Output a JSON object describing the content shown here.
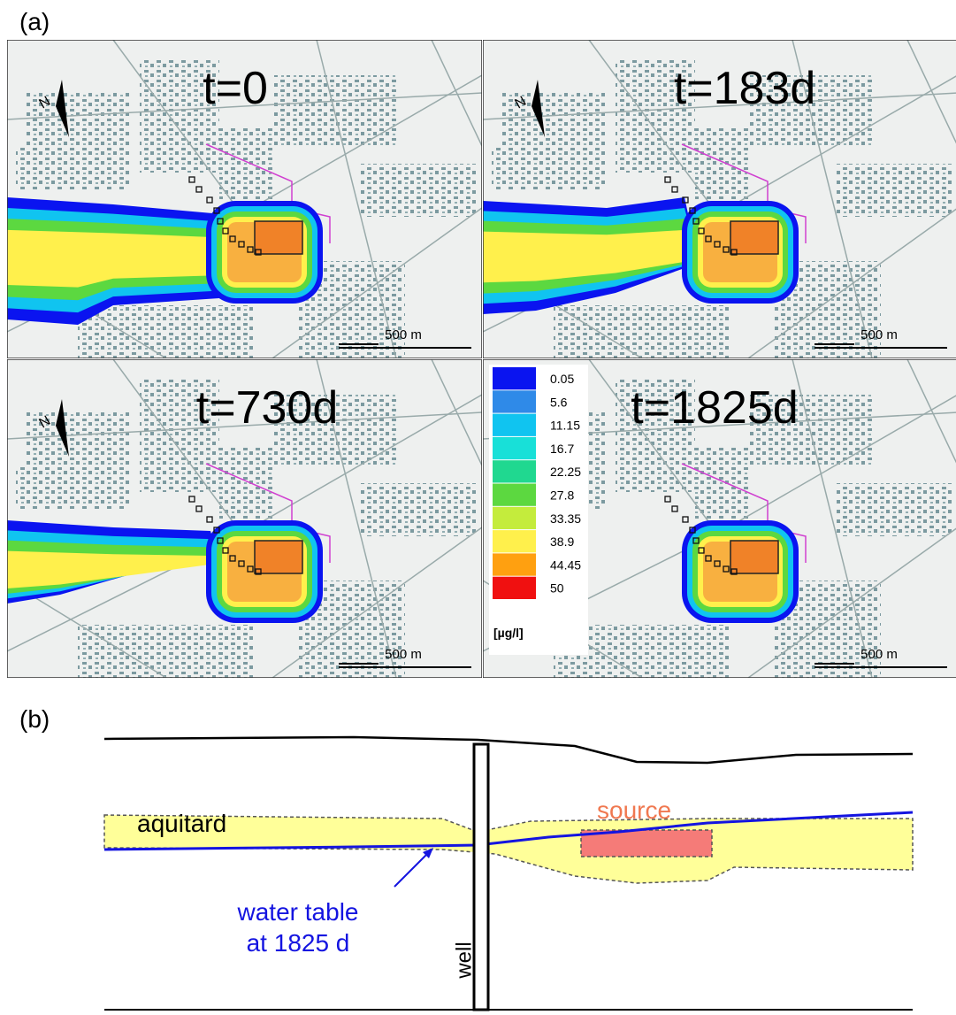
{
  "panel_a": {
    "label": "(a)",
    "panels": [
      {
        "title": "t=0",
        "scale": "500 m"
      },
      {
        "title": "t=183d",
        "scale": "500 m"
      },
      {
        "title": "t=730d",
        "scale": "500 m"
      },
      {
        "title": "t=1825d",
        "scale": "500 m"
      }
    ],
    "legend": {
      "values": [
        0.05,
        5.6,
        11.15,
        16.7,
        22.25,
        27.8,
        33.35,
        38.9,
        44.45,
        50
      ],
      "colors": [
        "#0a14f0",
        "#2f8ae8",
        "#10c4f0",
        "#18e0d8",
        "#20d890",
        "#5cd840",
        "#c4ec3c",
        "#fff04c",
        "#ffa010",
        "#f01010"
      ],
      "unit": "[µg/l]"
    }
  },
  "panel_b": {
    "label": "(b)",
    "aquitard": "aquitard",
    "source": "source",
    "water_table": [
      "water table",
      "at 1825 d"
    ],
    "well": "well"
  }
}
